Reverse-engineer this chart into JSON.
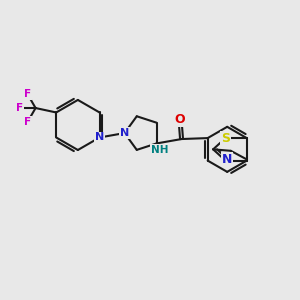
{
  "background_color": "#e8e8e8",
  "atom_colors": {
    "C": "#000000",
    "N_blue": "#2020cc",
    "N_teal": "#008080",
    "O": "#dd0000",
    "S": "#cccc00",
    "F": "#cc00cc",
    "H": "#000000"
  },
  "bond_color": "#1a1a1a",
  "bond_width": 1.5,
  "fig_size": [
    3.0,
    3.0
  ],
  "dpi": 100,
  "xlim": [
    0,
    10
  ],
  "ylim": [
    0,
    10
  ]
}
